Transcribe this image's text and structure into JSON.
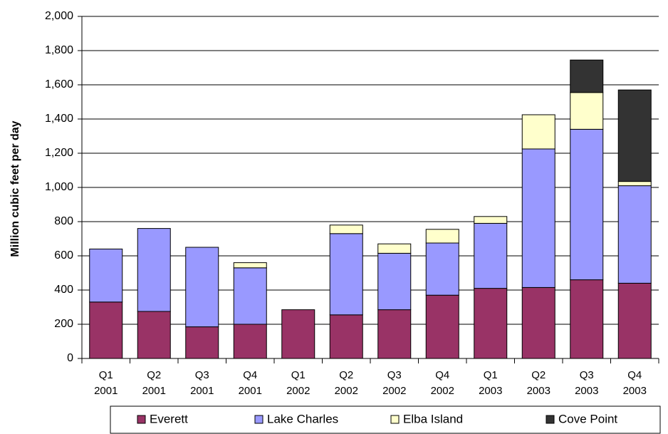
{
  "chart_data": {
    "type": "bar",
    "stacked": true,
    "ylabel": "Million cubic feet per day",
    "ylim": [
      0,
      2000
    ],
    "yticks": [
      "0",
      "200",
      "400",
      "600",
      "800",
      "1,000",
      "1,200",
      "1,400",
      "1,600",
      "1,800",
      "2,000"
    ],
    "categories": [
      [
        "Q1",
        "2001"
      ],
      [
        "Q2",
        "2001"
      ],
      [
        "Q3",
        "2001"
      ],
      [
        "Q4",
        "2001"
      ],
      [
        "Q1",
        "2002"
      ],
      [
        "Q2",
        "2002"
      ],
      [
        "Q3",
        "2002"
      ],
      [
        "Q4",
        "2002"
      ],
      [
        "Q1",
        "2003"
      ],
      [
        "Q2",
        "2003"
      ],
      [
        "Q3",
        "2003"
      ],
      [
        "Q4",
        "2003"
      ]
    ],
    "series": [
      {
        "name": "Everett",
        "color": "#993366",
        "values": [
          330,
          275,
          185,
          200,
          285,
          255,
          285,
          370,
          410,
          415,
          460,
          440
        ]
      },
      {
        "name": "Lake Charles",
        "color": "#9999ff",
        "values": [
          310,
          485,
          465,
          330,
          0,
          475,
          330,
          305,
          380,
          810,
          880,
          570
        ]
      },
      {
        "name": "Elba Island",
        "color": "#ffffcc",
        "values": [
          0,
          0,
          0,
          30,
          0,
          50,
          55,
          80,
          40,
          200,
          215,
          25
        ]
      },
      {
        "name": "Cove Point",
        "color": "#333333",
        "values": [
          0,
          0,
          0,
          0,
          0,
          0,
          0,
          0,
          0,
          0,
          190,
          535
        ]
      }
    ],
    "grid": "horizontal",
    "legend_position": "bottom"
  }
}
